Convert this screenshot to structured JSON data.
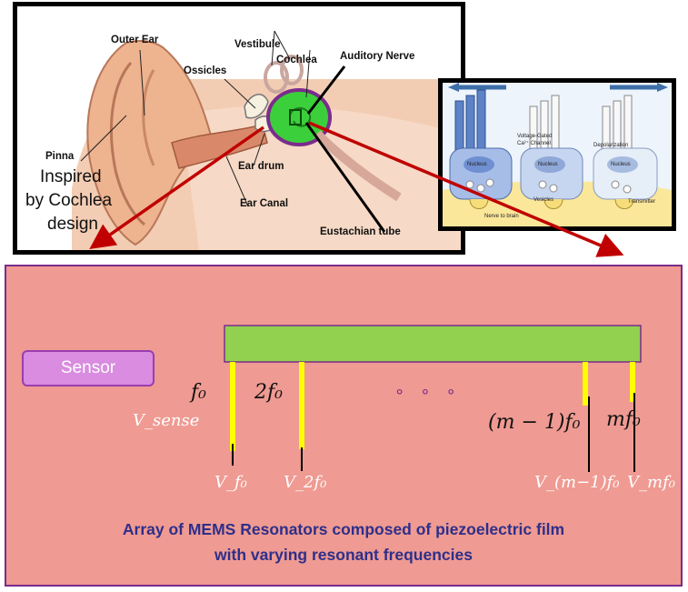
{
  "ear": {
    "labels": {
      "outer_ear": "Outer Ear",
      "vestibule": "Vestibule",
      "ossicles": "Ossicles",
      "cochlea": "Cochlea",
      "auditory_nerve": "Auditory Nerve",
      "pinna": "Pinna",
      "ear_drum": "Ear drum",
      "ear_canal": "Ear Canal",
      "eustachian_tube": "Eustachian tube"
    },
    "inspired_line1": "Inspired",
    "inspired_line2": "by Cochlea",
    "inspired_line3": "design"
  },
  "hair_cells": {
    "labels": {
      "voltage_gated": "Voltage-Gated",
      "ca_channel": "Ca²⁺ Channel",
      "depolarization": "Depolarization",
      "nucleus": "Nucleus",
      "vesicles": "Vesicles",
      "nerve_to_brain": "Nerve to brain",
      "transmitter": "Transmitter"
    }
  },
  "sensor": {
    "label": "Sensor"
  },
  "math": {
    "f0": "f₀",
    "two_f0": "2f₀",
    "ellipsis": "∘ ∘ ∘",
    "m_minus_1_f0": "(m − 1)f₀",
    "m_f0": "mf₀",
    "v_sense": "V_sense",
    "v_f0": "V_f₀",
    "v_2f0": "V_2f₀",
    "v_m1f0": "V_(m−1)f₀",
    "v_mf0": "V_mf₀"
  },
  "caption": {
    "line1": "Array of MEMS Resonators composed of piezoelectric film",
    "line2": "with varying resonant frequencies"
  },
  "colors": {
    "panel_bg": "#ef9a92",
    "panel_border": "#7b2c8c",
    "beam": "#92d050",
    "resonator": "#ffff00",
    "sensor_box": "#d98ce0",
    "caption_text": "#2e2f8a",
    "arrow": "#c00000",
    "cochlea_highlight": "#3ccf3c"
  }
}
